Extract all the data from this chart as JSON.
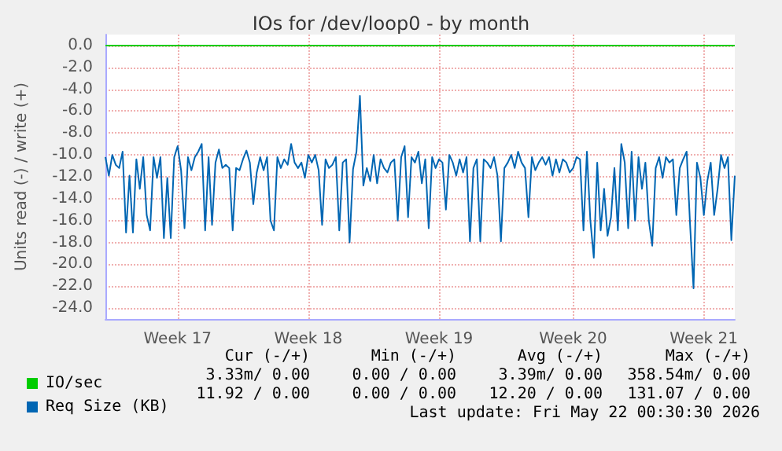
{
  "chart_data": {
    "type": "line",
    "title": "IOs for /dev/loop0 - by month",
    "ylabel": "Units read (-) / write (+)",
    "categories": [
      null,
      null,
      null,
      null,
      null,
      null,
      null,
      null,
      null,
      null,
      null,
      null,
      null,
      null,
      null,
      null,
      null,
      null,
      null,
      null,
      null,
      "Week 17",
      null,
      null,
      null,
      null,
      null,
      null,
      null,
      null,
      null,
      null,
      null,
      null,
      null,
      null,
      null,
      null,
      null,
      null,
      null,
      null,
      null,
      null,
      null,
      null,
      null,
      null,
      null,
      null,
      null,
      null,
      null,
      null,
      null,
      null,
      null,
      null,
      null,
      "Week 18",
      null,
      null,
      null,
      null,
      null,
      null,
      null,
      null,
      null,
      null,
      null,
      null,
      null,
      null,
      null,
      null,
      null,
      null,
      null,
      null,
      null,
      null,
      null,
      null,
      null,
      null,
      null,
      null,
      null,
      null,
      null,
      null,
      null,
      null,
      null,
      null,
      null,
      "Week 19",
      null,
      null,
      null,
      null,
      null,
      null,
      null,
      null,
      null,
      null,
      null,
      null,
      null,
      null,
      null,
      null,
      null,
      null,
      null,
      null,
      null,
      null,
      null,
      null,
      null,
      null,
      null,
      null,
      null,
      null,
      null,
      null,
      null,
      null,
      null,
      null,
      null,
      null,
      "Week 20",
      null,
      null,
      null,
      null,
      null,
      null,
      null,
      null,
      null,
      null,
      null,
      null,
      null,
      null,
      null,
      null,
      null,
      null,
      null,
      null,
      null,
      null,
      null,
      null,
      null,
      null,
      null,
      null,
      null,
      null,
      null,
      null,
      null,
      null,
      null,
      null,
      null,
      "Week 21",
      null,
      null,
      null,
      null,
      null,
      null,
      null,
      null,
      null
    ],
    "ylim": [
      -25,
      1
    ],
    "yticks": [
      {
        "value": 0,
        "label": "0.0"
      },
      {
        "value": -2,
        "label": "-2.0"
      },
      {
        "value": -4,
        "label": "-4.0"
      },
      {
        "value": -6,
        "label": "-6.0"
      },
      {
        "value": -8,
        "label": "-8.0"
      },
      {
        "value": -10,
        "label": "-10.0"
      },
      {
        "value": -12,
        "label": "-12.0"
      },
      {
        "value": -14,
        "label": "-14.0"
      },
      {
        "value": -16,
        "label": "-16.0"
      },
      {
        "value": -18,
        "label": "-18.0"
      },
      {
        "value": -20,
        "label": "-20.0"
      },
      {
        "value": -22,
        "label": "-22.0"
      },
      {
        "value": -24,
        "label": "-24.0"
      }
    ],
    "grid": true,
    "legend": "bottom left",
    "marker": "none",
    "line_style": "solid",
    "series": [
      {
        "name": "IO/sec",
        "color": "#00cc00",
        "values": [
          0,
          0,
          0,
          0,
          0,
          0,
          0,
          0,
          0,
          0,
          0,
          0,
          0,
          0,
          0,
          0,
          0,
          0,
          0,
          0,
          0,
          0,
          0,
          0,
          0,
          0,
          0,
          0,
          0,
          0,
          0,
          0,
          0,
          0,
          0,
          0,
          0,
          0,
          0,
          0,
          0,
          0,
          0,
          0,
          0,
          0,
          0,
          0,
          0,
          0,
          0,
          0,
          0,
          0,
          0,
          0,
          0,
          0,
          0,
          0,
          0,
          0,
          0,
          0,
          0,
          0,
          0,
          0,
          0,
          0,
          0,
          0,
          0,
          0,
          0,
          0,
          0,
          0,
          0,
          0,
          0,
          0,
          0,
          0,
          0,
          0,
          0,
          0,
          0,
          0,
          0,
          0,
          0,
          0,
          0,
          0,
          0,
          0,
          0,
          0,
          0,
          0,
          0,
          0,
          0,
          0,
          0,
          0,
          0,
          0,
          0,
          0,
          0,
          0,
          0,
          0,
          0,
          0,
          0,
          0,
          0,
          0,
          0,
          0,
          0,
          0,
          0,
          0,
          0,
          0,
          0,
          0,
          0,
          0,
          0,
          0,
          0,
          0,
          0,
          0,
          0,
          0,
          0,
          0,
          0,
          0,
          0,
          0,
          0,
          0,
          0,
          0,
          0,
          0,
          0,
          0,
          0,
          0,
          0,
          0,
          0,
          0,
          0,
          0,
          0,
          0,
          0,
          0,
          0,
          0,
          0,
          0,
          0,
          0,
          0,
          0,
          0,
          0,
          0,
          0,
          0,
          0,
          0,
          0
        ]
      },
      {
        "name": "Req Size (KB)",
        "color": "#0066b3",
        "values": [
          -10.2,
          -11.9,
          -10.0,
          -10.9,
          -11.2,
          -9.7,
          -17.1,
          -11.9,
          -17.1,
          -10.4,
          -13.1,
          -10.2,
          -15.5,
          -16.9,
          -10.2,
          -12.1,
          -10.2,
          -17.6,
          -12.1,
          -17.6,
          -10.2,
          -9.2,
          -11.4,
          -16.7,
          -10.2,
          -11.4,
          -10.2,
          -9.7,
          -9.0,
          -16.9,
          -10.2,
          -16.4,
          -10.7,
          -9.5,
          -11.2,
          -10.9,
          -11.2,
          -16.9,
          -11.2,
          -11.4,
          -10.4,
          -9.6,
          -10.7,
          -14.5,
          -11.6,
          -10.2,
          -11.4,
          -10.2,
          -16.0,
          -16.9,
          -10.2,
          -11.2,
          -10.4,
          -10.9,
          -9.0,
          -10.7,
          -11.2,
          -10.7,
          -12.1,
          -10.0,
          -10.7,
          -10.0,
          -11.4,
          -16.4,
          -10.4,
          -11.2,
          -10.9,
          -10.2,
          -16.9,
          -10.7,
          -10.4,
          -18.0,
          -11.3,
          -9.7,
          -4.6,
          -12.8,
          -11.2,
          -12.4,
          -10.0,
          -12.6,
          -10.4,
          -11.2,
          -11.6,
          -10.7,
          -10.4,
          -16.0,
          -10.2,
          -9.2,
          -15.7,
          -10.2,
          -10.7,
          -9.7,
          -12.6,
          -10.4,
          -16.7,
          -10.2,
          -11.2,
          -10.4,
          -10.7,
          -15.0,
          -10.0,
          -10.7,
          -11.9,
          -10.4,
          -11.6,
          -10.2,
          -17.9,
          -11.2,
          -10.4,
          -17.9,
          -10.4,
          -10.7,
          -11.2,
          -10.2,
          -11.9,
          -17.9,
          -11.2,
          -10.7,
          -10.0,
          -11.2,
          -9.7,
          -10.7,
          -11.2,
          -15.7,
          -10.2,
          -11.4,
          -10.7,
          -10.2,
          -10.9,
          -10.2,
          -11.9,
          -10.4,
          -11.6,
          -10.4,
          -10.7,
          -11.6,
          -11.2,
          -10.2,
          -10.4,
          -16.9,
          -9.7,
          -16.0,
          -19.4,
          -10.7,
          -16.9,
          -13.1,
          -17.4,
          -15.7,
          -11.2,
          -16.9,
          -9.0,
          -10.7,
          -16.7,
          -9.7,
          -16.0,
          -10.2,
          -13.1,
          -10.7,
          -16.0,
          -18.3,
          -11.2,
          -10.2,
          -12.1,
          -10.2,
          -10.7,
          -10.4,
          -15.5,
          -11.2,
          -10.4,
          -9.7,
          -16.4,
          -22.2,
          -10.7,
          -12.1,
          -15.5,
          -12.4,
          -10.7,
          -15.5,
          -13.1,
          -10.0,
          -11.2,
          -10.2,
          -17.8,
          -11.9
        ]
      }
    ],
    "annotations": [
      "Cur (-/+)",
      "Min (-/+)",
      "Avg (-/+)",
      "Max (-/+)",
      "3.33m/ 0.00",
      "0.00 / 0.00",
      "3.39m/ 0.00",
      "358.54m/ 0.00",
      "11.92 / 0.00",
      "0.00 / 0.00",
      "12.20 / 0.00",
      "131.07 / 0.00",
      "Last update: Fri May 22 00:30:30 2026"
    ]
  }
}
